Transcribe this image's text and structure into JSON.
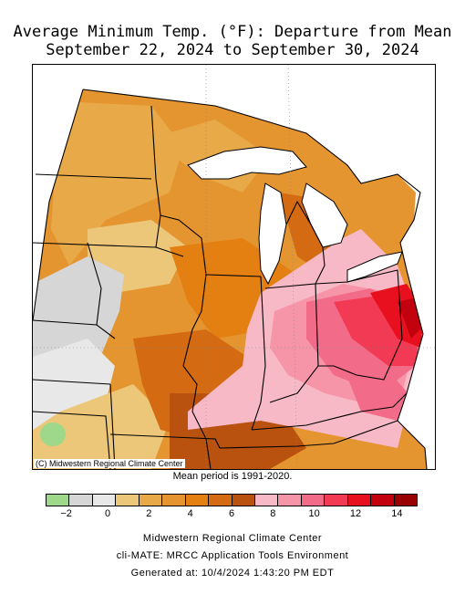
{
  "title": {
    "line1": "Average Minimum Temp. (°F): Departure from Mean",
    "line2": "September 22, 2024 to September 30, 2024"
  },
  "map": {
    "copyright": "(C) Midwestern Regional Climate Center",
    "mean_period": "Mean period is 1991-2020."
  },
  "legend": {
    "colors": [
      "#9ed88a",
      "#d6d6d6",
      "#e8e8e8",
      "#ecc77a",
      "#e8a948",
      "#e4952f",
      "#e47f12",
      "#d46a12",
      "#b9520e",
      "#f8b9c6",
      "#f795a8",
      "#f26b88",
      "#f33a54",
      "#e8101e",
      "#c3000d",
      "#990000"
    ],
    "ticks": [
      {
        "label": "−2",
        "value": -2
      },
      {
        "label": "0",
        "value": 0
      },
      {
        "label": "2",
        "value": 2
      },
      {
        "label": "4",
        "value": 4
      },
      {
        "label": "6",
        "value": 6
      },
      {
        "label": "8",
        "value": 8
      },
      {
        "label": "10",
        "value": 10
      },
      {
        "label": "12",
        "value": 12
      },
      {
        "label": "14",
        "value": 14
      }
    ],
    "min": -3,
    "max": 15
  },
  "footer": {
    "org": "Midwestern Regional Climate Center",
    "app": "cli-MATE: MRCC Application Tools Environment",
    "generated": "Generated at: 10/4/2024 1:43:20 PM EDT"
  }
}
